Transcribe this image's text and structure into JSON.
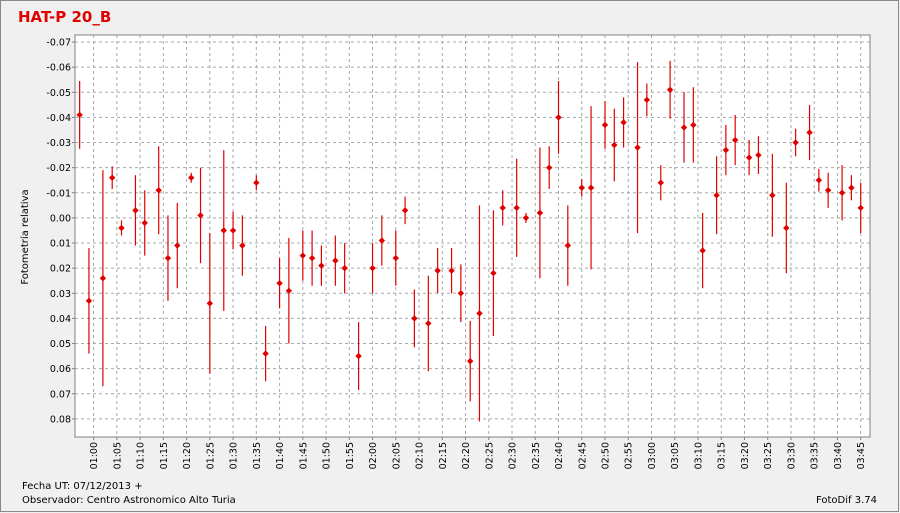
{
  "chart_data": {
    "type": "scatter",
    "title": "HAT-P 20_B",
    "y_label": "Fotometría relativa",
    "footer_left": [
      "Fecha UT: 07/12/2013 +",
      "Observador: Centro Astronomico Alto Turia"
    ],
    "footer_right": "FotoDif 3.74",
    "color": "#e00000",
    "grid": true,
    "y_inverted": true,
    "ylim": [
      -0.0728,
      0.0872
    ],
    "yticks": [
      -0.07,
      -0.06,
      -0.05,
      -0.04,
      -0.03,
      -0.02,
      -0.01,
      {
        "value": 0,
        "label": "0.00"
      },
      0.01,
      0.02,
      0.03,
      0.04,
      0.05,
      0.06,
      0.07,
      0.08
    ],
    "xlim": [
      "00:56",
      "03:47"
    ],
    "xticks": [
      "01:00",
      "01:05",
      "01:10",
      "01:15",
      "01:20",
      "01:25",
      "01:30",
      "01:35",
      "01:40",
      "01:45",
      "01:50",
      "01:55",
      "02:00",
      "02:05",
      "02:10",
      "02:15",
      "02:20",
      "02:25",
      "02:30",
      "02:35",
      "02:40",
      "02:45",
      "02:50",
      "02:55",
      "03:00",
      "03:05",
      "03:10",
      "03:15",
      "03:20",
      "03:25",
      "03:30",
      "03:35",
      "03:40",
      "03:45"
    ],
    "x": [
      "00:57",
      "00:59",
      "01:02",
      "01:04",
      "01:06",
      "01:09",
      "01:11",
      "01:14",
      "01:16",
      "01:18",
      "01:21",
      "01:23",
      "01:25",
      "01:28",
      "01:30",
      "01:32",
      "01:35",
      "01:37",
      "01:40",
      "01:42",
      "01:45",
      "01:47",
      "01:49",
      "01:52",
      "01:54",
      "01:57",
      "02:00",
      "02:02",
      "02:05",
      "02:07",
      "02:09",
      "02:12",
      "02:14",
      "02:17",
      "02:19",
      "02:21",
      "02:23",
      "02:26",
      "02:28",
      "02:31",
      "02:33",
      "02:36",
      "02:38",
      "02:40",
      "02:42",
      "02:45",
      "02:47",
      "02:50",
      "02:52",
      "02:54",
      "02:57",
      "02:59",
      "03:02",
      "03:04",
      "03:07",
      "03:09",
      "03:11",
      "03:14",
      "03:16",
      "03:18",
      "03:21",
      "03:23",
      "03:26",
      "03:29",
      "03:31",
      "03:34",
      "03:36",
      "03:38",
      "03:41",
      "03:43",
      "03:45"
    ],
    "values": [
      -0.041,
      0.033,
      0.024,
      -0.016,
      0.004,
      -0.003,
      0.002,
      -0.011,
      0.016,
      0.011,
      -0.016,
      -0.001,
      0.034,
      0.005,
      0.005,
      0.011,
      -0.014,
      0.054,
      0.026,
      0.029,
      0.015,
      0.016,
      0.019,
      0.017,
      0.02,
      0.055,
      0.02,
      0.009,
      0.016,
      -0.003,
      0.04,
      0.042,
      0.021,
      0.021,
      0.03,
      0.057,
      0.038,
      0.022,
      -0.004,
      -0.004,
      0,
      -0.002,
      -0.02,
      -0.04,
      0.011,
      -0.012,
      -0.012,
      -0.037,
      -0.029,
      -0.038,
      -0.028,
      -0.047,
      -0.014,
      -0.051,
      -0.036,
      -0.037,
      0.013,
      -0.009,
      -0.027,
      -0.031,
      -0.024,
      -0.025,
      -0.009,
      0.004,
      -0.03,
      -0.034,
      -0.015,
      -0.011,
      -0.01,
      -0.012,
      -0.004
    ],
    "errors": [
      0.0135,
      0.021,
      0.043,
      0.0045,
      0.003,
      0.014,
      0.013,
      0.0175,
      0.017,
      0.017,
      0.002,
      0.019,
      0.028,
      0.032,
      0.0075,
      0.012,
      0.003,
      0.011,
      0.01,
      0.021,
      0.01,
      0.011,
      0.008,
      0.01,
      0.01,
      0.0135,
      0.01,
      0.01,
      0.011,
      0.0055,
      0.0115,
      0.019,
      0.009,
      0.009,
      0.0115,
      0.016,
      0.043,
      0.025,
      0.007,
      0.0195,
      0.002,
      0.026,
      0.0085,
      0.0145,
      0.016,
      0.0035,
      0.0325,
      0.0095,
      0.0145,
      0.01,
      0.034,
      0.0065,
      0.007,
      0.0115,
      0.014,
      0.015,
      0.015,
      0.0155,
      0.01,
      0.01,
      0.007,
      0.0075,
      0.0165,
      0.018,
      0.0055,
      0.011,
      0.0045,
      0.007,
      0.011,
      0.005,
      0.01
    ]
  }
}
